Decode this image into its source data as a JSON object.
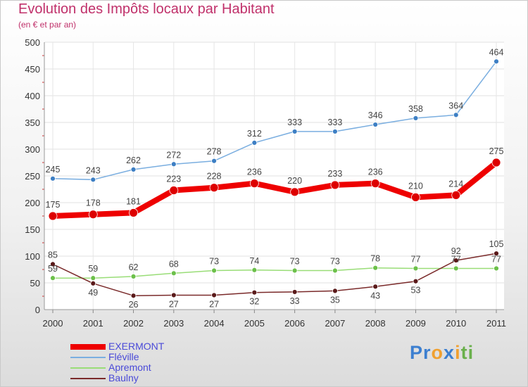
{
  "header": {
    "title": "Evolution des Impôts locaux par Habitant",
    "subtitle": "(en € et par an)"
  },
  "brand": {
    "letters": [
      {
        "ch": "P",
        "color": "#3c7fd0"
      },
      {
        "ch": "r",
        "color": "#3c7fd0"
      },
      {
        "ch": "o",
        "color": "#f0a030"
      },
      {
        "ch": "x",
        "color": "#3c7fd0"
      },
      {
        "ch": "i",
        "color": "#f0a030"
      },
      {
        "ch": "t",
        "color": "#6ab04c"
      },
      {
        "ch": "i",
        "color": "#6ab04c"
      }
    ]
  },
  "chart_data": {
    "type": "line",
    "title": "Evolution des Impôts locaux par Habitant",
    "subtitle": "(en € et par an)",
    "xlabel": "",
    "ylabel": "",
    "x": [
      "2000",
      "2001",
      "2002",
      "2003",
      "2004",
      "2005",
      "2006",
      "2007",
      "2008",
      "2009",
      "2010",
      "2011"
    ],
    "ylim": [
      0,
      500
    ],
    "yticks": [
      0,
      50,
      100,
      150,
      200,
      250,
      300,
      350,
      400,
      450,
      500
    ],
    "grid": true,
    "legend": "bottom-left",
    "series": [
      {
        "name": "EXERMONT",
        "color": "#ee0000",
        "values": [
          175,
          178,
          181,
          223,
          228,
          236,
          220,
          233,
          236,
          210,
          214,
          275
        ],
        "labels": [
          "175",
          "178",
          "181",
          "223",
          "228",
          "236",
          "220",
          "233",
          "236",
          "210",
          "214",
          "275"
        ]
      },
      {
        "name": "Fléville",
        "color": "#7aaee0",
        "values": [
          245,
          243,
          262,
          272,
          278,
          312,
          333,
          333,
          346,
          358,
          364,
          464
        ],
        "labels": [
          "245",
          "243",
          "262",
          "272",
          "278",
          "312",
          "333",
          "333",
          "346",
          "358",
          "364",
          "464"
        ]
      },
      {
        "name": "Apremont",
        "color": "#99dd77",
        "values": [
          59,
          59,
          62,
          68,
          73,
          74,
          73,
          73,
          78,
          77,
          77,
          77
        ],
        "labels": [
          "59",
          "59",
          "62",
          "68",
          "73",
          "74",
          "73",
          "73",
          "78",
          "77",
          "77",
          "77"
        ]
      },
      {
        "name": "Baulny",
        "color": "#7a2a2a",
        "values": [
          85,
          49,
          26,
          27,
          27,
          32,
          33,
          35,
          43,
          53,
          92,
          105
        ],
        "labels": [
          "85",
          "49",
          "26",
          "27",
          "27",
          "32",
          "33",
          "35",
          "43",
          "53",
          "92",
          "105"
        ]
      }
    ]
  }
}
